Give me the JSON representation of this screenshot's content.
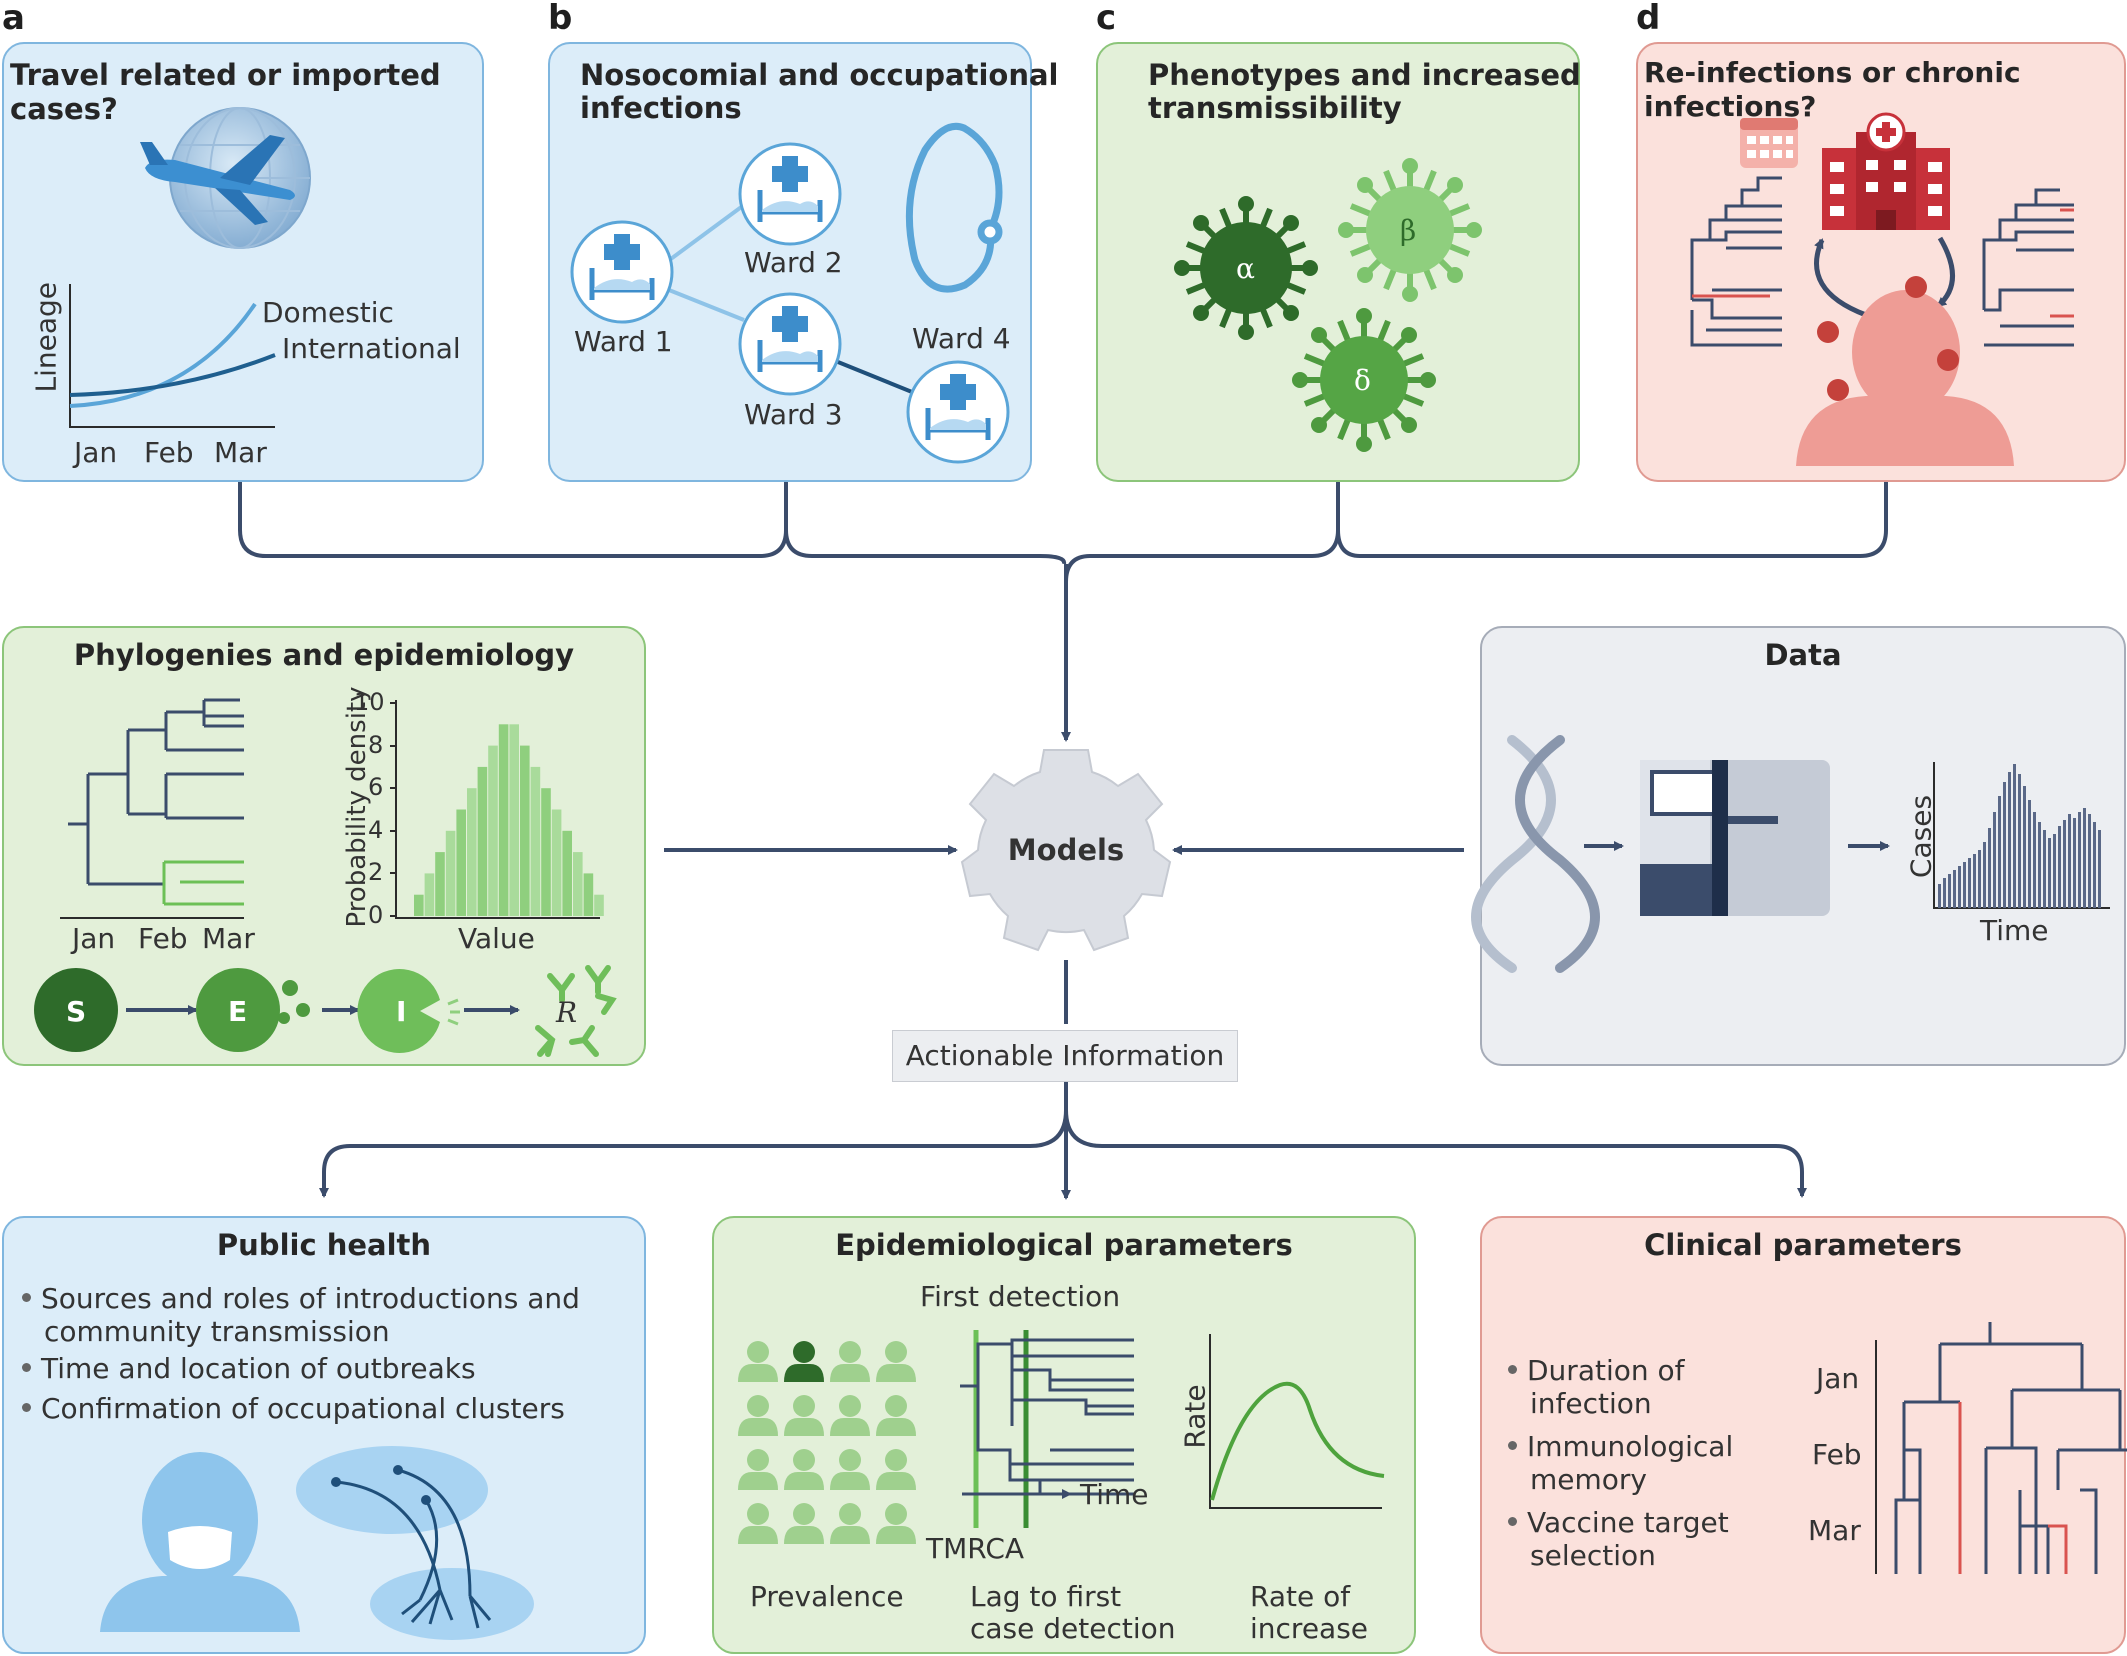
{
  "panels": {
    "a": {
      "letter": "a",
      "title": "Travel related or imported cases?",
      "curve_domestic": "Domestic",
      "curve_international": "International",
      "y_axis": "Lineage",
      "x_ticks": [
        "Jan",
        "Feb",
        "Mar"
      ]
    },
    "b": {
      "letter": "b",
      "title_line1": "Nosocomial and occupational",
      "title_line2": "infections",
      "wards": [
        "Ward 1",
        "Ward 2",
        "Ward 3",
        "Ward 4"
      ]
    },
    "c": {
      "letter": "c",
      "title_line1": "Phenotypes and increased",
      "title_line2": "transmissibility",
      "variants": [
        "α",
        "β",
        "δ"
      ]
    },
    "d": {
      "letter": "d",
      "title": "Re-infections or chronic infections?"
    }
  },
  "phylo_panel": {
    "title": "Phylogenies and epidemiology",
    "tree_ticks": [
      "Jan",
      "Feb",
      "Mar"
    ],
    "hist_ylabel": "Probability density",
    "hist_xlabel": "Value",
    "hist_yticks": [
      "10",
      "8",
      "6",
      "4",
      "2",
      "0"
    ],
    "seir": [
      "S",
      "E",
      "I",
      "R"
    ]
  },
  "chart_data": {
    "type": "bar",
    "title": "",
    "xlabel": "Value",
    "ylabel": "Probability density",
    "ylim": [
      0,
      10
    ],
    "values": [
      1,
      2,
      3,
      4,
      5,
      6,
      7,
      8,
      9,
      9,
      8,
      7,
      6,
      5,
      4,
      3,
      2,
      1
    ]
  },
  "data_panel": {
    "title": "Data",
    "ylabel": "Cases",
    "xlabel": "Time"
  },
  "models": {
    "label": "Models"
  },
  "actionable": {
    "label": "Actionable Information"
  },
  "public_health": {
    "title": "Public health",
    "bullets": [
      [
        "Sources and roles of introductions and",
        "community transmission"
      ],
      [
        "Time and location of outbreaks"
      ],
      [
        "Confirmation of occupational clusters"
      ]
    ]
  },
  "epi_params": {
    "title": "Epidemiological parameters",
    "first_detection": "First detection",
    "time_label": "Time",
    "tmrca": "TMRCA",
    "rate_label": "Rate",
    "col_prevalence": "Prevalence",
    "col_lag": [
      "Lag to first",
      "case detection"
    ],
    "col_rate": [
      "Rate of",
      "increase"
    ]
  },
  "clinical": {
    "title": "Clinical parameters",
    "bullets": [
      [
        "Duration of",
        "infection"
      ],
      [
        "Immunological",
        "memory"
      ],
      [
        "Vaccine target",
        "selection"
      ]
    ],
    "months": [
      "Jan",
      "Feb",
      "Mar"
    ]
  },
  "colors": {
    "navy": "#3b4c6b",
    "blue": "#5aa5d8",
    "green": "#5fae4b",
    "red": "#d9534f"
  }
}
